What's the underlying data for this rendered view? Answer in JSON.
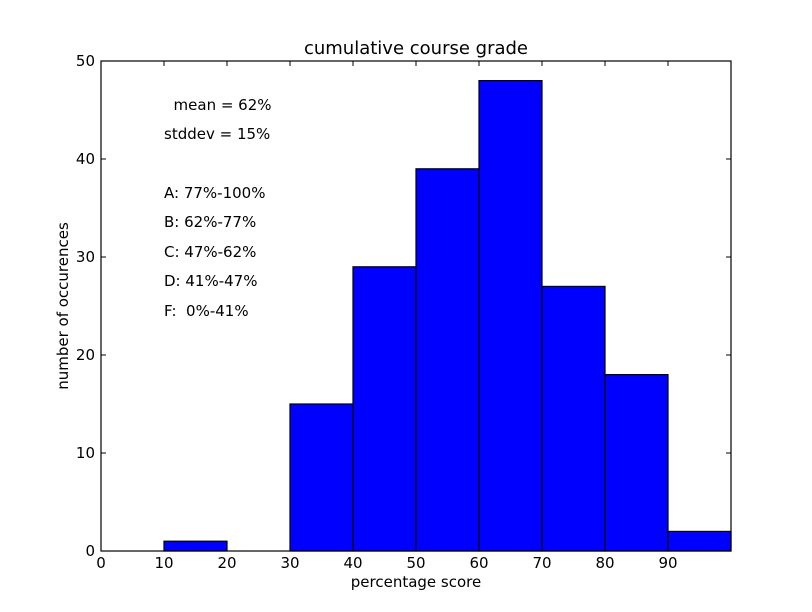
{
  "chart_data": {
    "type": "bar",
    "title": "cumulative course grade",
    "xlabel": "percentage score",
    "ylabel": "number of occurences",
    "xlim": [
      0,
      100
    ],
    "ylim": [
      0,
      50
    ],
    "xticks": [
      0,
      10,
      20,
      30,
      40,
      50,
      60,
      70,
      80,
      90
    ],
    "yticks": [
      0,
      10,
      20,
      30,
      40,
      50
    ],
    "bins": [
      {
        "start": 10,
        "end": 20,
        "value": 1
      },
      {
        "start": 30,
        "end": 40,
        "value": 15
      },
      {
        "start": 40,
        "end": 50,
        "value": 29
      },
      {
        "start": 50,
        "end": 60,
        "value": 39
      },
      {
        "start": 60,
        "end": 70,
        "value": 48
      },
      {
        "start": 70,
        "end": 80,
        "value": 27
      },
      {
        "start": 80,
        "end": 90,
        "value": 18
      },
      {
        "start": 90,
        "end": 100,
        "value": 2
      }
    ],
    "bar_color": "#0000ff",
    "grid": false,
    "legend": "none",
    "annotations": [
      {
        "text": "  mean = 62%"
      },
      {
        "text": "stddev = 15%"
      },
      {
        "text": "A: 77%-100%"
      },
      {
        "text": "B: 62%-77%"
      },
      {
        "text": "C: 47%-62%"
      },
      {
        "text": "D: 41%-47%"
      },
      {
        "text": "F:  0%-41%"
      }
    ]
  }
}
